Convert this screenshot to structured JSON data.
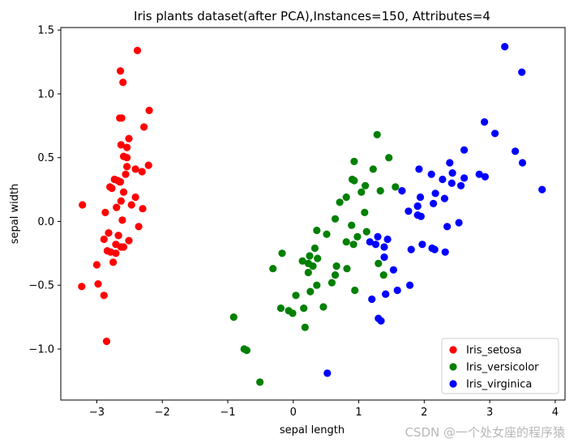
{
  "chart_data": {
    "type": "scatter",
    "title": "Iris plants dataset(after PCA),Instances=150, Attributes=4",
    "xlabel": "sepal length",
    "ylabel": "sepal width",
    "xlim": [
      -3.55,
      4.15
    ],
    "ylim": [
      -1.4,
      1.52
    ],
    "xticks": [
      -3,
      -2,
      -1,
      0,
      1,
      2,
      3,
      4
    ],
    "xtick_labels": [
      "−3",
      "−2",
      "−1",
      "0",
      "1",
      "2",
      "3",
      "4"
    ],
    "yticks": [
      -1.0,
      -0.5,
      0.0,
      0.5,
      1.0,
      1.5
    ],
    "ytick_labels": [
      "−1.0",
      "−0.5",
      "0.0",
      "0.5",
      "1.0",
      "1.5"
    ],
    "grid": false,
    "legend": "lower-right",
    "series": [
      {
        "name": "Iris_setosa",
        "color": "#ff0000",
        "points": [
          [
            -2.68,
            0.32
          ],
          [
            -2.71,
            -0.18
          ],
          [
            -2.89,
            -0.14
          ],
          [
            -2.75,
            -0.32
          ],
          [
            -2.73,
            0.33
          ],
          [
            -2.28,
            0.74
          ],
          [
            -2.82,
            -0.09
          ],
          [
            -2.63,
            0.16
          ],
          [
            -2.89,
            -0.58
          ],
          [
            -2.67,
            -0.11
          ],
          [
            -2.51,
            0.65
          ],
          [
            -2.61,
            0.01
          ],
          [
            -2.79,
            -0.24
          ],
          [
            -3.23,
            -0.51
          ],
          [
            -2.64,
            1.18
          ],
          [
            -2.38,
            1.34
          ],
          [
            -2.62,
            0.81
          ],
          [
            -2.65,
            0.31
          ],
          [
            -2.2,
            0.87
          ],
          [
            -2.59,
            0.51
          ],
          [
            -2.31,
            0.39
          ],
          [
            -2.54,
            0.43
          ],
          [
            -3.22,
            0.13
          ],
          [
            -2.3,
            0.1
          ],
          [
            -2.36,
            -0.04
          ],
          [
            -2.51,
            -0.15
          ],
          [
            -2.47,
            0.13
          ],
          [
            -2.56,
            0.37
          ],
          [
            -2.64,
            0.31
          ],
          [
            -2.63,
            -0.2
          ],
          [
            -2.59,
            -0.2
          ],
          [
            -2.41,
            0.41
          ],
          [
            -2.65,
            0.81
          ],
          [
            -2.6,
            1.09
          ],
          [
            -2.67,
            -0.11
          ],
          [
            -2.87,
            0.07
          ],
          [
            -2.63,
            0.6
          ],
          [
            -2.8,
            0.27
          ],
          [
            -2.98,
            -0.49
          ],
          [
            -2.59,
            0.23
          ],
          [
            -2.77,
            0.26
          ],
          [
            -2.85,
            -0.94
          ],
          [
            -3.0,
            -0.34
          ],
          [
            -2.41,
            0.19
          ],
          [
            -2.21,
            0.44
          ],
          [
            -2.71,
            -0.25
          ],
          [
            -2.54,
            0.5
          ],
          [
            -2.84,
            -0.23
          ],
          [
            -2.54,
            0.58
          ],
          [
            -2.7,
            0.11
          ]
        ]
      },
      {
        "name": "Iris_versicolor",
        "color": "#008000",
        "points": [
          [
            1.28,
            0.68
          ],
          [
            0.93,
            0.32
          ],
          [
            1.46,
            0.5
          ],
          [
            0.18,
            -0.83
          ],
          [
            1.09,
            0.07
          ],
          [
            0.64,
            -0.42
          ],
          [
            1.1,
            0.28
          ],
          [
            -0.75,
            -1.0
          ],
          [
            1.04,
            0.23
          ],
          [
            -0.01,
            -0.72
          ],
          [
            -0.51,
            -1.26
          ],
          [
            0.51,
            -0.1
          ],
          [
            0.26,
            -0.55
          ],
          [
            0.98,
            -0.12
          ],
          [
            -0.17,
            -0.25
          ],
          [
            0.93,
            0.47
          ],
          [
            0.66,
            -0.35
          ],
          [
            0.23,
            -0.33
          ],
          [
            0.94,
            -0.54
          ],
          [
            0.04,
            -0.58
          ],
          [
            1.12,
            -0.08
          ],
          [
            0.36,
            -0.07
          ],
          [
            1.3,
            -0.33
          ],
          [
            0.92,
            -0.18
          ],
          [
            0.71,
            0.15
          ],
          [
            0.9,
            0.33
          ],
          [
            1.33,
            0.24
          ],
          [
            1.56,
            0.27
          ],
          [
            0.81,
            -0.16
          ],
          [
            -0.31,
            -0.37
          ],
          [
            -0.07,
            -0.7
          ],
          [
            -0.19,
            -0.68
          ],
          [
            0.14,
            -0.31
          ],
          [
            1.38,
            -0.42
          ],
          [
            0.59,
            -0.48
          ],
          [
            0.81,
            0.19
          ],
          [
            1.22,
            0.41
          ],
          [
            0.82,
            -0.37
          ],
          [
            0.25,
            -0.27
          ],
          [
            0.16,
            -0.68
          ],
          [
            0.46,
            -0.67
          ],
          [
            0.89,
            -0.03
          ],
          [
            0.23,
            -0.4
          ],
          [
            -0.71,
            -1.01
          ],
          [
            0.36,
            -0.5
          ],
          [
            0.33,
            -0.21
          ],
          [
            0.37,
            -0.29
          ],
          [
            0.64,
            0.02
          ],
          [
            -0.91,
            -0.75
          ],
          [
            0.3,
            -0.35
          ]
        ]
      },
      {
        "name": "Iris_virginica",
        "color": "#0000ff",
        "points": [
          [
            2.53,
            -0.01
          ],
          [
            1.41,
            -0.57
          ],
          [
            2.61,
            0.34
          ],
          [
            1.97,
            -0.18
          ],
          [
            2.35,
            -0.04
          ],
          [
            3.39,
            0.55
          ],
          [
            0.52,
            -1.19
          ],
          [
            2.93,
            0.35
          ],
          [
            2.32,
            -0.24
          ],
          [
            2.92,
            0.78
          ],
          [
            1.66,
            0.24
          ],
          [
            1.8,
            -0.22
          ],
          [
            2.17,
            0.22
          ],
          [
            1.34,
            -0.78
          ],
          [
            1.59,
            -0.54
          ],
          [
            1.9,
            0.12
          ],
          [
            1.95,
            0.04
          ],
          [
            3.49,
            1.17
          ],
          [
            3.8,
            0.25
          ],
          [
            1.3,
            -0.76
          ],
          [
            2.43,
            0.38
          ],
          [
            1.2,
            -0.61
          ],
          [
            3.5,
            0.46
          ],
          [
            1.39,
            -0.2
          ],
          [
            2.28,
            0.33
          ],
          [
            2.61,
            0.56
          ],
          [
            1.26,
            -0.18
          ],
          [
            1.29,
            -0.12
          ],
          [
            2.12,
            -0.21
          ],
          [
            2.39,
            0.46
          ],
          [
            2.84,
            0.37
          ],
          [
            3.23,
            1.37
          ],
          [
            2.16,
            -0.22
          ],
          [
            1.44,
            -0.14
          ],
          [
            1.78,
            -0.5
          ],
          [
            3.08,
            0.69
          ],
          [
            2.14,
            0.14
          ],
          [
            1.9,
            0.05
          ],
          [
            1.17,
            -0.16
          ],
          [
            2.11,
            0.37
          ],
          [
            2.31,
            0.18
          ],
          [
            1.92,
            0.41
          ],
          [
            1.41,
            -0.57
          ],
          [
            2.56,
            0.28
          ],
          [
            2.42,
            0.3
          ],
          [
            1.94,
            0.19
          ],
          [
            1.53,
            -0.38
          ],
          [
            1.76,
            0.08
          ],
          [
            1.9,
            0.12
          ],
          [
            1.39,
            -0.28
          ]
        ]
      }
    ]
  },
  "watermark": "CSDN @一个处女座的程序猿"
}
